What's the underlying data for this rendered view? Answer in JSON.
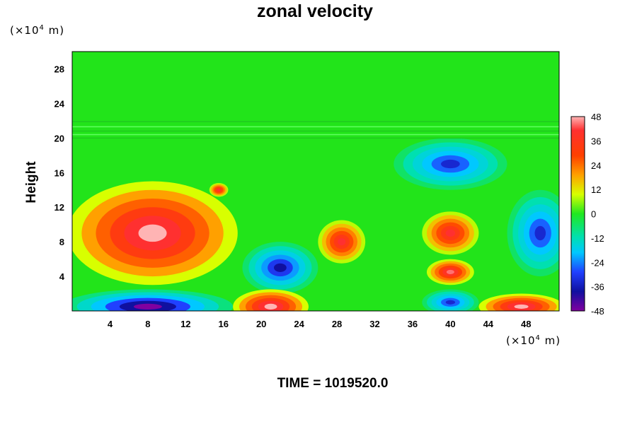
{
  "chart_data": {
    "type": "heatmap",
    "title": "zonal velocity",
    "ylabel": "Height",
    "y_unit": "(×10⁴ m)",
    "x_unit": "(×10⁴ m)",
    "xlim": [
      0,
      51.5
    ],
    "ylim": [
      0,
      30
    ],
    "x_ticks": [
      "4",
      "8",
      "12",
      "16",
      "20",
      "24",
      "28",
      "32",
      "36",
      "40",
      "44",
      "48"
    ],
    "y_ticks": [
      "4",
      "8",
      "12",
      "16",
      "20",
      "24",
      "28"
    ],
    "colorbar": {
      "range": [
        -48,
        48
      ],
      "ticks": [
        "48",
        "36",
        "24",
        "12",
        "0",
        "-12",
        "-24",
        "-36",
        "-48"
      ]
    },
    "background_value": 0,
    "upper_layer_boundary_y": 20,
    "features": [
      {
        "x": 8.5,
        "y": 9,
        "rx": 9,
        "ry": 6,
        "value": 48
      },
      {
        "x": 22,
        "y": 5,
        "rx": 4,
        "ry": 3,
        "value": -40
      },
      {
        "x": 28.5,
        "y": 8,
        "rx": 2.5,
        "ry": 2.5,
        "value": 40
      },
      {
        "x": 40,
        "y": 9,
        "rx": 3,
        "ry": 2.5,
        "value": 40
      },
      {
        "x": 40,
        "y": 4.5,
        "rx": 2.5,
        "ry": 1.5,
        "value": 44
      },
      {
        "x": 40,
        "y": 17,
        "rx": 6,
        "ry": 3,
        "value": -36
      },
      {
        "x": 49.5,
        "y": 9,
        "rx": 3.5,
        "ry": 5,
        "value": -36
      },
      {
        "x": 8,
        "y": 0.5,
        "rx": 9,
        "ry": 2,
        "value": -48
      },
      {
        "x": 21,
        "y": 0.5,
        "rx": 4,
        "ry": 2,
        "value": 48
      },
      {
        "x": 47.5,
        "y": 0.5,
        "rx": 4.5,
        "ry": 1.5,
        "value": 48
      },
      {
        "x": 40,
        "y": 1,
        "rx": 3,
        "ry": 1.5,
        "value": -36
      },
      {
        "x": 15.5,
        "y": 14,
        "rx": 1,
        "ry": 0.8,
        "value": 40
      }
    ],
    "time_label": "TIME = 1019520.0"
  }
}
